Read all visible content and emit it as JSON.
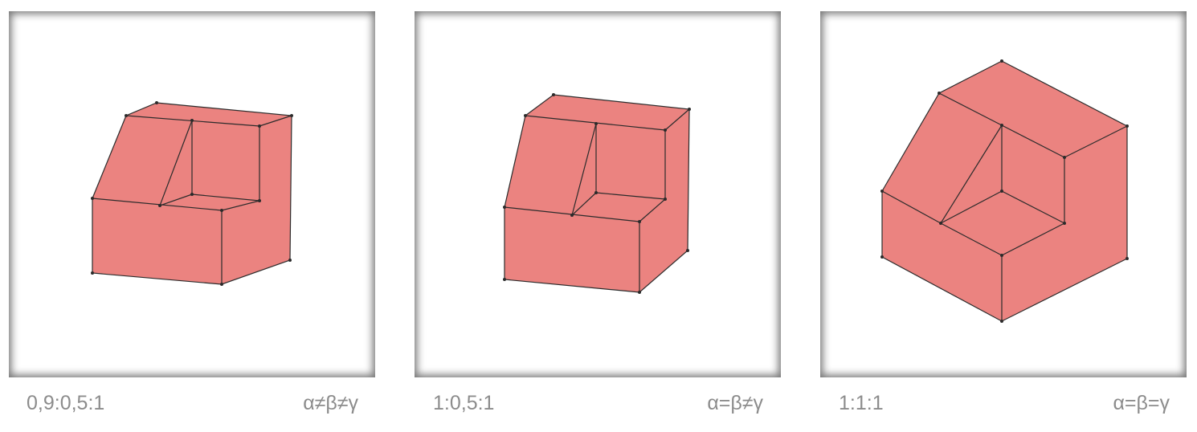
{
  "panels": [
    {
      "ratio": "0,9:0,5:1",
      "angles": "α≠β≠γ",
      "projection": "trimetric"
    },
    {
      "ratio": "1:0,5:1",
      "angles": "α=β≠γ",
      "projection": "dimetric"
    },
    {
      "ratio": "1:1:1",
      "angles": "α=β=γ",
      "projection": "isometric"
    }
  ],
  "colors": {
    "shape_fill": "#eb8380",
    "edge": "#2b2b2b",
    "caption_text": "#8c8c8c",
    "frame_shadow": "#555555"
  }
}
